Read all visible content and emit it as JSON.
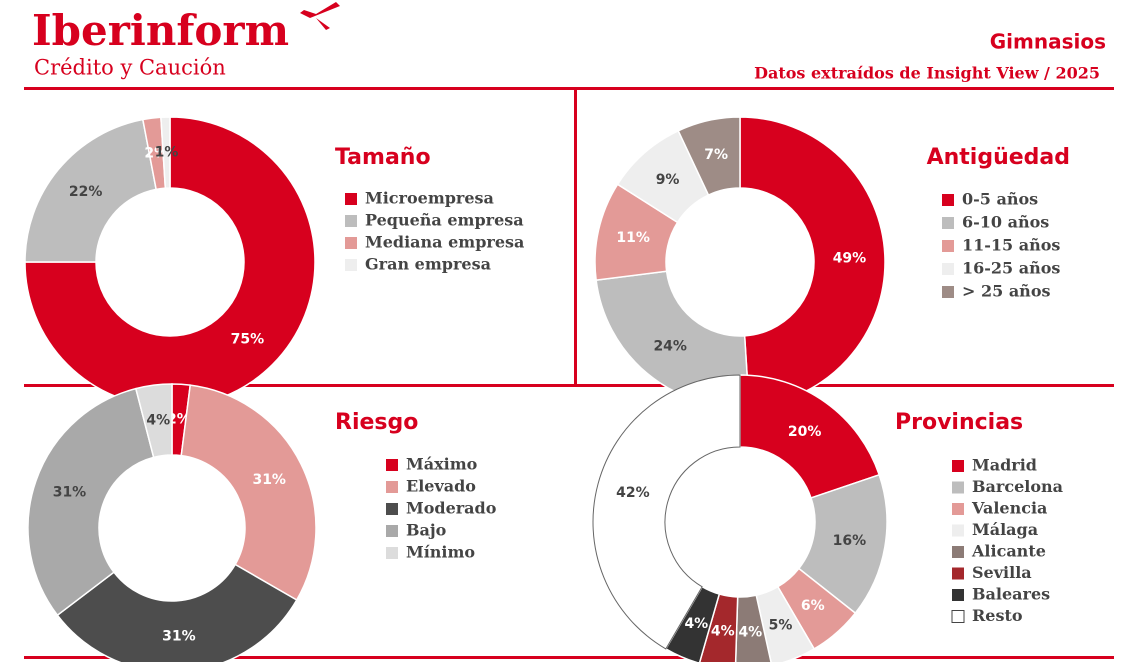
{
  "header": {
    "brand": "Iberinform",
    "subbrand": "Crédito y Caución",
    "title": "Gimnasios",
    "subtitle": "Datos extraídos de Insight View / 2025"
  },
  "chart_data": [
    {
      "type": "pie",
      "title": "Tamaño",
      "categories": [
        "Microempresa",
        "Pequeña empresa",
        "Mediana empresa",
        "Gran empresa"
      ],
      "values": [
        75,
        22,
        2,
        1
      ],
      "value_labels": [
        "75%",
        "22%",
        "2%",
        "1%"
      ],
      "colors": [
        "#d7001e",
        "#bdbdbd",
        "#e39a97",
        "#eeeeee"
      ]
    },
    {
      "type": "pie",
      "title": "Antigüedad",
      "categories": [
        "0-5 años",
        "6-10 años",
        "11-15 años",
        "16-25 años",
        "> 25 años"
      ],
      "values": [
        49,
        24,
        11,
        9,
        7
      ],
      "value_labels": [
        "49%",
        "24%",
        "11%",
        "9%",
        "7%"
      ],
      "colors": [
        "#d7001e",
        "#bdbdbd",
        "#e39a97",
        "#eeeeee",
        "#9e8c86"
      ]
    },
    {
      "type": "pie",
      "title": "Riesgo",
      "categories": [
        "Máximo",
        "Elevado",
        "Moderado",
        "Bajo",
        "Mínimo"
      ],
      "values": [
        2,
        31,
        31,
        31,
        4
      ],
      "value_labels": [
        "2%",
        "31%",
        "31%",
        "31%",
        "4%"
      ],
      "colors": [
        "#d7001e",
        "#e39a97",
        "#4d4d4d",
        "#a9a9a9",
        "#dcdcdc"
      ]
    },
    {
      "type": "pie",
      "title": "Provincias",
      "categories": [
        "Madrid",
        "Barcelona",
        "Valencia",
        "Málaga",
        "Alicante",
        "Sevilla",
        "Baleares",
        "Resto"
      ],
      "values": [
        20,
        16,
        6,
        5,
        4,
        4,
        4,
        42
      ],
      "value_labels": [
        "20%",
        "16%",
        "6%",
        "5%",
        "4%",
        "4%",
        "4%",
        "42%"
      ],
      "colors": [
        "#d7001e",
        "#bdbdbd",
        "#e39a97",
        "#eeeeee",
        "#8c7b76",
        "#a4282c",
        "#333333",
        "#ffffff"
      ]
    }
  ]
}
